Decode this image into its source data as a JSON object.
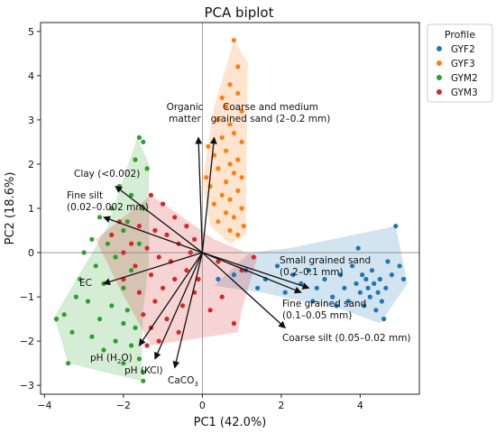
{
  "chart_data": {
    "type": "scatter",
    "title": "PCA biplot",
    "xlabel": "PC1 (42.0%)",
    "ylabel": "PC2 (18.6%)",
    "xlim": [
      -4.1,
      5.5
    ],
    "ylim": [
      -3.2,
      5.2
    ],
    "xticks": [
      -4,
      -2,
      0,
      2,
      4
    ],
    "yticks": [
      -3,
      -2,
      -1,
      0,
      1,
      2,
      3,
      4,
      5
    ],
    "zero_lines": true,
    "grid": false,
    "legend": {
      "title": "Profile",
      "position": "outside-top-right"
    },
    "series": [
      {
        "name": "GYF2",
        "color": "#1f77b4",
        "hull": [
          [
            0.3,
            -0.75
          ],
          [
            1.2,
            0.0
          ],
          [
            2.2,
            0.1
          ],
          [
            4.9,
            0.6
          ],
          [
            5.2,
            -0.7
          ],
          [
            4.5,
            -1.6
          ],
          [
            3.6,
            -1.3
          ],
          [
            1.5,
            -0.9
          ]
        ],
        "points": [
          [
            0.4,
            -0.6
          ],
          [
            0.8,
            -0.5
          ],
          [
            1.1,
            -0.4
          ],
          [
            1.4,
            -0.8
          ],
          [
            1.6,
            -0.6
          ],
          [
            1.9,
            -0.3
          ],
          [
            2.1,
            -0.9
          ],
          [
            2.3,
            -0.5
          ],
          [
            2.5,
            -0.7
          ],
          [
            2.7,
            -0.4
          ],
          [
            2.9,
            -0.8
          ],
          [
            3.1,
            -0.6
          ],
          [
            3.3,
            -1.0
          ],
          [
            3.5,
            -0.5
          ],
          [
            3.6,
            -0.8
          ],
          [
            3.7,
            -1.1
          ],
          [
            3.8,
            -0.3
          ],
          [
            3.9,
            -0.7
          ],
          [
            4.0,
            -0.9
          ],
          [
            4.05,
            -0.5
          ],
          [
            4.1,
            -1.2
          ],
          [
            4.15,
            -0.6
          ],
          [
            4.2,
            -0.8
          ],
          [
            4.25,
            -1.0
          ],
          [
            4.3,
            -0.4
          ],
          [
            4.35,
            -0.7
          ],
          [
            4.4,
            -1.3
          ],
          [
            4.45,
            -0.9
          ],
          [
            4.5,
            -0.6
          ],
          [
            4.55,
            -1.1
          ],
          [
            4.6,
            -1.5
          ],
          [
            4.65,
            -0.8
          ],
          [
            4.7,
            -0.2
          ],
          [
            4.8,
            -0.5
          ],
          [
            4.9,
            0.6
          ],
          [
            5.0,
            -0.3
          ],
          [
            5.1,
            -0.6
          ],
          [
            3.4,
            -1.2
          ],
          [
            2.8,
            -1.1
          ],
          [
            3.95,
            0.1
          ]
        ]
      },
      {
        "name": "GYF3",
        "color": "#ff7f0e",
        "hull": [
          [
            0.0,
            1.6
          ],
          [
            0.3,
            3.3
          ],
          [
            0.8,
            4.8
          ],
          [
            1.15,
            4.3
          ],
          [
            1.1,
            0.4
          ],
          [
            0.7,
            0.2
          ],
          [
            0.2,
            0.6
          ]
        ],
        "points": [
          [
            0.8,
            4.8
          ],
          [
            0.9,
            4.2
          ],
          [
            0.7,
            3.8
          ],
          [
            0.5,
            3.5
          ],
          [
            0.6,
            3.3
          ],
          [
            0.9,
            3.6
          ],
          [
            1.0,
            3.2
          ],
          [
            0.4,
            3.0
          ],
          [
            0.7,
            2.9
          ],
          [
            0.8,
            2.7
          ],
          [
            0.5,
            2.6
          ],
          [
            1.0,
            2.5
          ],
          [
            0.6,
            2.3
          ],
          [
            0.3,
            2.2
          ],
          [
            0.9,
            2.1
          ],
          [
            0.7,
            2.0
          ],
          [
            0.4,
            1.9
          ],
          [
            0.8,
            1.8
          ],
          [
            1.0,
            1.7
          ],
          [
            0.6,
            1.6
          ],
          [
            0.2,
            1.5
          ],
          [
            0.9,
            1.4
          ],
          [
            0.5,
            1.3
          ],
          [
            0.7,
            1.2
          ],
          [
            0.3,
            1.1
          ],
          [
            1.0,
            1.0
          ],
          [
            0.6,
            0.9
          ],
          [
            0.8,
            0.8
          ],
          [
            0.4,
            0.7
          ],
          [
            1.05,
            0.6
          ],
          [
            0.7,
            0.5
          ],
          [
            0.9,
            0.4
          ],
          [
            0.1,
            1.7
          ],
          [
            0.15,
            2.4
          ]
        ]
      },
      {
        "name": "GYM2",
        "color": "#2ca02c",
        "hull": [
          [
            -3.75,
            -1.45
          ],
          [
            -2.4,
            0.6
          ],
          [
            -1.65,
            2.6
          ],
          [
            -1.35,
            2.0
          ],
          [
            -1.35,
            -0.2
          ],
          [
            -1.5,
            -1.3
          ],
          [
            -1.55,
            -2.9
          ],
          [
            -3.4,
            -2.5
          ]
        ],
        "points": [
          [
            -1.6,
            2.6
          ],
          [
            -1.5,
            2.5
          ],
          [
            -1.7,
            2.1
          ],
          [
            -1.4,
            1.9
          ],
          [
            -2.1,
            1.5
          ],
          [
            -1.8,
            1.3
          ],
          [
            -2.3,
            1.0
          ],
          [
            -1.5,
            1.0
          ],
          [
            -2.6,
            0.8
          ],
          [
            -1.9,
            0.7
          ],
          [
            -2.0,
            0.5
          ],
          [
            -2.8,
            0.3
          ],
          [
            -2.4,
            0.2
          ],
          [
            -1.6,
            0.2
          ],
          [
            -3.0,
            0.0
          ],
          [
            -2.2,
            -0.1
          ],
          [
            -2.7,
            -0.3
          ],
          [
            -1.8,
            -0.4
          ],
          [
            -3.1,
            -0.6
          ],
          [
            -2.5,
            -0.7
          ],
          [
            -2.0,
            -0.8
          ],
          [
            -1.6,
            -0.9
          ],
          [
            -3.2,
            -1.0
          ],
          [
            -2.9,
            -1.1
          ],
          [
            -2.3,
            -1.2
          ],
          [
            -1.9,
            -1.3
          ],
          [
            -3.5,
            -1.4
          ],
          [
            -3.7,
            -1.5
          ],
          [
            -2.6,
            -1.5
          ],
          [
            -2.0,
            -1.6
          ],
          [
            -1.7,
            -1.7
          ],
          [
            -3.3,
            -1.8
          ],
          [
            -2.8,
            -1.9
          ],
          [
            -2.2,
            -2.0
          ],
          [
            -1.8,
            -2.1
          ],
          [
            -2.5,
            -2.2
          ],
          [
            -1.6,
            -2.4
          ],
          [
            -2.0,
            -2.5
          ],
          [
            -1.5,
            -2.7
          ],
          [
            -1.5,
            -2.9
          ],
          [
            -3.4,
            -2.5
          ]
        ]
      },
      {
        "name": "GYM3",
        "color": "#d62728",
        "hull": [
          [
            -2.7,
            0.3
          ],
          [
            -1.3,
            1.3
          ],
          [
            0.3,
            0.3
          ],
          [
            1.4,
            -0.1
          ],
          [
            1.0,
            -1.3
          ],
          [
            0.9,
            -1.8
          ],
          [
            -1.3,
            -2.1
          ],
          [
            -2.1,
            -0.8
          ]
        ],
        "points": [
          [
            -1.3,
            1.3
          ],
          [
            -1.0,
            1.1
          ],
          [
            -0.7,
            0.8
          ],
          [
            -2.1,
            0.7
          ],
          [
            -1.6,
            0.6
          ],
          [
            -0.4,
            0.6
          ],
          [
            -1.2,
            0.5
          ],
          [
            -2.3,
            0.4
          ],
          [
            -0.9,
            0.4
          ],
          [
            -0.2,
            0.3
          ],
          [
            -1.8,
            0.2
          ],
          [
            -0.6,
            0.2
          ],
          [
            -1.4,
            0.1
          ],
          [
            -2.0,
            0.0
          ],
          [
            -0.3,
            0.0
          ],
          [
            -1.1,
            -0.1
          ],
          [
            -0.8,
            -0.2
          ],
          [
            -1.7,
            -0.3
          ],
          [
            -0.4,
            -0.4
          ],
          [
            -1.3,
            -0.5
          ],
          [
            -2.0,
            -0.6
          ],
          [
            -0.7,
            -0.6
          ],
          [
            -1.0,
            -0.8
          ],
          [
            -1.6,
            -0.9
          ],
          [
            -0.2,
            -0.9
          ],
          [
            -1.2,
            -1.1
          ],
          [
            -0.5,
            -1.2
          ],
          [
            -1.5,
            -1.4
          ],
          [
            -0.9,
            -1.5
          ],
          [
            -1.3,
            -1.7
          ],
          [
            -0.6,
            -1.8
          ],
          [
            -1.1,
            -2.0
          ],
          [
            -1.4,
            -2.1
          ],
          [
            0.2,
            -1.3
          ],
          [
            0.5,
            -1.0
          ],
          [
            0.8,
            -1.6
          ],
          [
            1.0,
            -0.4
          ],
          [
            1.3,
            -0.1
          ],
          [
            0.4,
            -0.2
          ],
          [
            -0.1,
            -0.6
          ]
        ]
      }
    ],
    "loadings": [
      {
        "label": "Organic matter",
        "end": [
          -0.1,
          2.6
        ]
      },
      {
        "label": "Coarse and medium grained sand (2–0.2 mm)",
        "end": [
          0.3,
          2.6
        ]
      },
      {
        "label": "Clay (<0.002)",
        "end": [
          -2.2,
          1.5
        ]
      },
      {
        "label": "Fine silt (0.02–0.002 mm)",
        "end": [
          -2.5,
          0.8
        ]
      },
      {
        "label": "EC",
        "end": [
          -2.5,
          -0.7
        ]
      },
      {
        "label": "Small grained sand (0.2–0.1 mm)",
        "end": [
          2.7,
          -0.8
        ]
      },
      {
        "label": "Fine grained sand (0.1–0.05 mm)",
        "end": [
          2.5,
          -0.9
        ]
      },
      {
        "label": "Coarse silt (0.05–0.02 mm)",
        "end": [
          2.1,
          -1.7
        ]
      },
      {
        "label": "pH (H2O)",
        "end": [
          -1.6,
          -2.1
        ]
      },
      {
        "label": "pH (KCl)",
        "end": [
          -1.2,
          -2.4
        ]
      },
      {
        "label": "CaCO3",
        "end": [
          -0.7,
          -2.6
        ]
      }
    ]
  }
}
